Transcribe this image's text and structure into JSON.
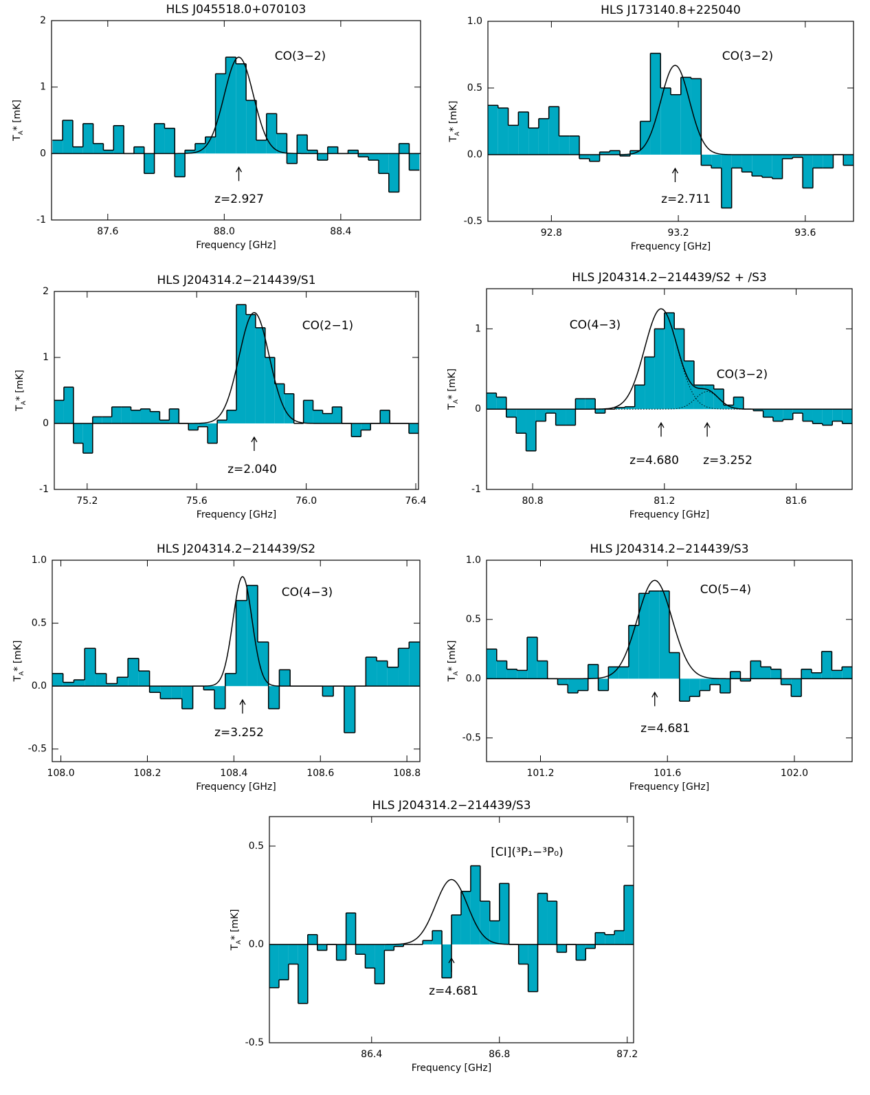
{
  "chart_data": [
    {
      "type": "histogram",
      "title": "HLS J045518.0+070103",
      "x_label": "Frequency [GHz]",
      "y_label": {
        "symbol": "T",
        "subscript": "A",
        "suffix": "* [mK]"
      },
      "color": "#00a9c2",
      "xlim": [
        87.407,
        88.674
      ],
      "ylim": [
        -1,
        2
      ],
      "xticks": [
        87.6,
        {
          "value": 88,
          "label": "88.0"
        },
        88.4
      ],
      "yticks": [
        -1,
        0,
        1,
        2
      ],
      "bins": [
        87.41,
        87.445,
        87.48,
        87.515,
        87.55,
        87.585,
        87.62,
        87.655,
        87.69,
        87.725,
        87.76,
        87.795,
        87.83,
        87.865,
        87.9,
        87.935,
        87.97,
        88.005,
        88.04,
        88.075,
        88.11,
        88.145,
        88.18,
        88.215,
        88.25,
        88.285,
        88.32,
        88.355,
        88.39,
        88.425,
        88.46,
        88.495,
        88.53,
        88.565,
        88.6,
        88.635,
        88.67
      ],
      "values": [
        0.2,
        0.5,
        0.1,
        0.45,
        0.15,
        0.05,
        0.42,
        0.0,
        0.1,
        -0.3,
        0.45,
        0.38,
        -0.35,
        0.05,
        0.15,
        0.25,
        1.2,
        1.45,
        1.35,
        0.8,
        0.2,
        0.6,
        0.3,
        -0.15,
        0.28,
        0.05,
        -0.1,
        0.1,
        0.0,
        0.05,
        -0.05,
        -0.1,
        -0.3,
        -0.58,
        0.15,
        -0.25
      ],
      "fits": [
        {
          "center": 88.05,
          "amplitude": 1.45,
          "sigma": 0.05
        }
      ],
      "line_labels": [
        "CO(3−2)"
      ],
      "redshift_labels": [
        "z=2.927"
      ]
    },
    {
      "type": "histogram",
      "title": "HLS J173140.8+225040",
      "x_label": "Frequency [GHz]",
      "y_label": {
        "symbol": "T",
        "subscript": "A",
        "suffix": "* [mK]"
      },
      "color": "#00a9c2",
      "xlim": [
        92.6,
        93.752
      ],
      "ylim": [
        -0.5,
        1.0
      ],
      "xticks": [
        92.8,
        93.2,
        93.6
      ],
      "yticks": [
        -0.5,
        {
          "value": 0,
          "label": "0.0"
        },
        0.5,
        {
          "value": 1,
          "label": "1.0"
        }
      ],
      "bins": [
        92.6,
        92.632,
        92.664,
        92.696,
        92.728,
        92.76,
        92.792,
        92.824,
        92.856,
        92.888,
        92.92,
        92.952,
        92.984,
        93.016,
        93.048,
        93.08,
        93.112,
        93.144,
        93.176,
        93.208,
        93.24,
        93.272,
        93.304,
        93.336,
        93.368,
        93.4,
        93.432,
        93.464,
        93.496,
        93.528,
        93.56,
        93.592,
        93.624,
        93.656,
        93.688,
        93.72,
        93.752
      ],
      "values": [
        0.37,
        0.35,
        0.22,
        0.32,
        0.2,
        0.27,
        0.36,
        0.14,
        0.14,
        -0.03,
        -0.05,
        0.02,
        0.03,
        -0.01,
        0.03,
        0.25,
        0.76,
        0.5,
        0.45,
        0.58,
        0.57,
        -0.08,
        -0.1,
        -0.4,
        -0.1,
        -0.13,
        -0.16,
        -0.17,
        -0.18,
        -0.03,
        -0.02,
        -0.25,
        -0.1,
        -0.1,
        0.0,
        -0.08
      ],
      "fits": [
        {
          "center": 93.19,
          "amplitude": 0.67,
          "sigma": 0.045
        }
      ],
      "line_labels": [
        "CO(3−2)"
      ],
      "redshift_labels": [
        "z=2.711"
      ]
    },
    {
      "type": "histogram",
      "title": "HLS J204314.2−214439/S1",
      "x_label": "Frequency [GHz]",
      "y_label": {
        "symbol": "T",
        "subscript": "A",
        "suffix": "* [mK]"
      },
      "color": "#00a9c2",
      "xlim": [
        75.08,
        76.41
      ],
      "ylim": [
        -1,
        2
      ],
      "xticks": [
        75.2,
        75.6,
        {
          "value": 76,
          "label": "76.0"
        },
        76.4
      ],
      "yticks": [
        -1,
        0,
        1,
        2
      ],
      "bins": [
        75.08,
        75.115,
        75.15,
        75.185,
        75.22,
        75.255,
        75.29,
        75.325,
        75.36,
        75.395,
        75.43,
        75.465,
        75.5,
        75.535,
        75.57,
        75.605,
        75.64,
        75.675,
        75.71,
        75.745,
        75.78,
        75.815,
        75.85,
        75.885,
        75.92,
        75.955,
        75.99,
        76.025,
        76.06,
        76.095,
        76.13,
        76.165,
        76.2,
        76.235,
        76.27,
        76.305,
        76.34,
        76.375,
        76.41
      ],
      "values": [
        0.35,
        0.55,
        -0.3,
        -0.45,
        0.1,
        0.1,
        0.25,
        0.25,
        0.2,
        0.22,
        0.18,
        0.05,
        0.22,
        0.0,
        -0.1,
        -0.05,
        -0.3,
        0.05,
        0.2,
        1.8,
        1.65,
        1.45,
        1.0,
        0.6,
        0.45,
        0.0,
        0.35,
        0.2,
        0.15,
        0.25,
        0.0,
        -0.2,
        -0.1,
        0.0,
        0.2,
        0.0,
        0.0,
        -0.15
      ],
      "fits": [
        {
          "center": 75.81,
          "amplitude": 1.68,
          "sigma": 0.055
        }
      ],
      "line_labels": [
        "CO(2−1)"
      ],
      "redshift_labels": [
        "z=2.040"
      ]
    },
    {
      "type": "histogram",
      "title": "HLS J204314.2−214439/S2 + /S3",
      "x_label": "Frequency [GHz]",
      "y_label": {
        "symbol": "T",
        "subscript": "A",
        "suffix": "* [mK]"
      },
      "color": "#00a9c2",
      "xlim": [
        80.66,
        81.77
      ],
      "ylim": [
        -1,
        1.5
      ],
      "xticks": [
        80.8,
        81.2,
        81.6
      ],
      "yticks": [
        -1,
        0,
        1
      ],
      "bins": [
        80.66,
        80.69,
        80.72,
        80.75,
        80.78,
        80.81,
        80.84,
        80.87,
        80.9,
        80.93,
        80.96,
        80.99,
        81.02,
        81.05,
        81.08,
        81.11,
        81.14,
        81.17,
        81.2,
        81.23,
        81.26,
        81.29,
        81.32,
        81.35,
        81.38,
        81.41,
        81.44,
        81.47,
        81.5,
        81.53,
        81.56,
        81.59,
        81.62,
        81.65,
        81.68,
        81.71,
        81.74,
        81.77
      ],
      "values": [
        0.2,
        0.15,
        -0.1,
        -0.3,
        -0.52,
        -0.15,
        -0.05,
        -0.2,
        -0.2,
        0.13,
        0.13,
        -0.05,
        0.0,
        0.02,
        0.03,
        0.3,
        0.65,
        1.0,
        1.2,
        1.0,
        0.6,
        0.3,
        0.3,
        0.25,
        0.05,
        0.15,
        0.0,
        -0.02,
        -0.1,
        -0.15,
        -0.13,
        -0.05,
        -0.15,
        -0.18,
        -0.2,
        -0.15,
        -0.18
      ],
      "fits": [
        {
          "center": 81.19,
          "amplitude": 1.25,
          "sigma": 0.05
        },
        {
          "center": 81.33,
          "amplitude": 0.22,
          "sigma": 0.035
        }
      ],
      "line_labels": [
        "CO(4−3)",
        "CO(3−2)"
      ],
      "redshift_labels": [
        "z=4.680",
        "z=3.252"
      ]
    },
    {
      "type": "histogram",
      "title": "HLS J204314.2−214439/S2",
      "x_label": "Frequency [GHz]",
      "y_label": {
        "symbol": "T",
        "subscript": "A",
        "suffix": "* [mK]"
      },
      "color": "#00a9c2",
      "xlim": [
        107.98,
        108.83
      ],
      "ylim": [
        -0.6,
        1.0
      ],
      "xticks": [
        {
          "value": 108,
          "label": "108.0"
        },
        108.2,
        108.4,
        108.6,
        108.8
      ],
      "yticks": [
        -0.5,
        {
          "value": 0,
          "label": "0.0"
        },
        0.5,
        {
          "value": 1,
          "label": "1.0"
        }
      ],
      "bins": [
        107.98,
        108.005,
        108.03,
        108.055,
        108.08,
        108.105,
        108.13,
        108.155,
        108.18,
        108.205,
        108.23,
        108.255,
        108.28,
        108.305,
        108.33,
        108.355,
        108.38,
        108.405,
        108.43,
        108.455,
        108.48,
        108.505,
        108.53,
        108.555,
        108.58,
        108.605,
        108.63,
        108.655,
        108.68,
        108.705,
        108.73,
        108.755,
        108.78,
        108.805,
        108.83
      ],
      "values": [
        0.1,
        0.03,
        0.05,
        0.3,
        0.1,
        0.02,
        0.07,
        0.22,
        0.12,
        -0.05,
        -0.1,
        -0.1,
        -0.18,
        0.0,
        -0.03,
        -0.18,
        0.1,
        0.68,
        0.8,
        0.35,
        -0.18,
        0.13,
        0.0,
        0.0,
        0.0,
        -0.08,
        0.0,
        -0.37,
        0.0,
        0.23,
        0.2,
        0.15,
        0.3,
        0.35
      ],
      "fits": [
        {
          "center": 108.42,
          "amplitude": 0.87,
          "sigma": 0.022
        }
      ],
      "line_labels": [
        "CO(4−3)"
      ],
      "redshift_labels": [
        "z=3.252"
      ]
    },
    {
      "type": "histogram",
      "title": "HLS J204314.2−214439/S3",
      "x_label": "Frequency [GHz]",
      "y_label": {
        "symbol": "T",
        "subscript": "A",
        "suffix": "* [mK]"
      },
      "color": "#00a9c2",
      "xlim": [
        101.03,
        102.182
      ],
      "ylim": [
        -0.7,
        1.0
      ],
      "xticks": [
        101.2,
        101.6,
        {
          "value": 102,
          "label": "102.0"
        }
      ],
      "yticks": [
        -0.5,
        {
          "value": 0,
          "label": "0.0"
        },
        0.5,
        {
          "value": 1,
          "label": "1.0"
        }
      ],
      "bins": [
        101.03,
        101.062,
        101.094,
        101.126,
        101.158,
        101.19,
        101.222,
        101.254,
        101.286,
        101.318,
        101.35,
        101.382,
        101.414,
        101.446,
        101.478,
        101.51,
        101.542,
        101.574,
        101.606,
        101.638,
        101.67,
        101.702,
        101.734,
        101.766,
        101.798,
        101.83,
        101.862,
        101.894,
        101.926,
        101.958,
        101.99,
        102.022,
        102.054,
        102.086,
        102.118,
        102.15,
        102.182
      ],
      "values": [
        0.25,
        0.15,
        0.08,
        0.07,
        0.35,
        0.15,
        0.0,
        -0.05,
        -0.12,
        -0.1,
        0.12,
        -0.1,
        0.1,
        0.1,
        0.45,
        0.72,
        0.74,
        0.74,
        0.22,
        -0.19,
        -0.15,
        -0.1,
        -0.05,
        -0.12,
        0.06,
        -0.02,
        0.15,
        0.1,
        0.08,
        -0.05,
        -0.15,
        0.08,
        0.05,
        0.23,
        0.07,
        0.1
      ],
      "fits": [
        {
          "center": 101.56,
          "amplitude": 0.83,
          "sigma": 0.055
        }
      ],
      "line_labels": [
        "CO(5−4)"
      ],
      "redshift_labels": [
        "z=4.681"
      ]
    },
    {
      "type": "histogram",
      "title": "HLS J204314.2−214439/S3",
      "x_label": "Frequency [GHz]",
      "y_label": {
        "symbol": "T",
        "subscript": "A",
        "suffix": "* [mK]"
      },
      "color": "#00a9c2",
      "xlim": [
        86.08,
        87.22
      ],
      "ylim": [
        -0.5,
        0.65
      ],
      "xticks": [
        86.4,
        86.8,
        87.2
      ],
      "yticks": [
        -0.5,
        {
          "value": 0,
          "label": "0.0"
        },
        0.5
      ],
      "bins": [
        86.08,
        86.11,
        86.14,
        86.17,
        86.2,
        86.23,
        86.26,
        86.29,
        86.32,
        86.35,
        86.38,
        86.41,
        86.44,
        86.47,
        86.5,
        86.53,
        86.56,
        86.59,
        86.62,
        86.65,
        86.68,
        86.71,
        86.74,
        86.77,
        86.8,
        86.83,
        86.86,
        86.89,
        86.92,
        86.95,
        86.98,
        87.01,
        87.04,
        87.07,
        87.1,
        87.13,
        87.16,
        87.19,
        87.22
      ],
      "values": [
        -0.22,
        -0.18,
        -0.1,
        -0.3,
        0.05,
        -0.03,
        0.0,
        -0.08,
        0.16,
        -0.05,
        -0.12,
        -0.2,
        -0.03,
        -0.01,
        0.0,
        0.0,
        0.02,
        0.07,
        -0.17,
        0.15,
        0.27,
        0.4,
        0.22,
        0.12,
        0.31,
        0.0,
        -0.1,
        -0.24,
        0.26,
        0.22,
        -0.04,
        0.0,
        -0.08,
        -0.02,
        0.06,
        0.05,
        0.07,
        0.3
      ],
      "fits": [
        {
          "center": 86.65,
          "amplitude": 0.33,
          "sigma": 0.05
        }
      ],
      "line_labels": [
        "[CI](³P₁−³P₀)"
      ],
      "redshift_labels": [
        "z=4.681"
      ]
    }
  ]
}
